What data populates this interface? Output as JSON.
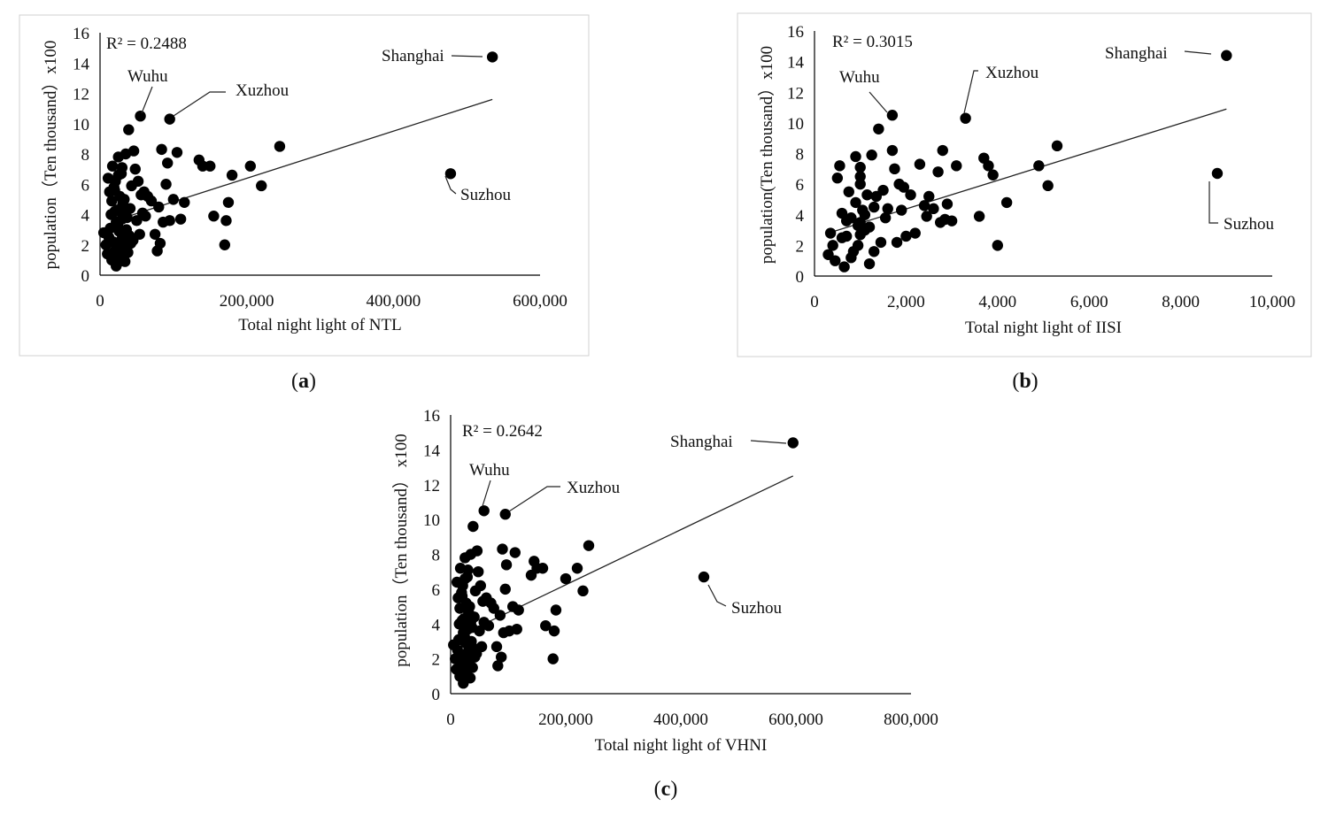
{
  "chart_data": [
    {
      "type": "scatter",
      "panel_label": "a",
      "xlabel": "Total night light  of  NTL",
      "ylabel": "population（Ten thousand）x100",
      "xlim": [
        0,
        600000
      ],
      "ylim": [
        0,
        16
      ],
      "xticks": [
        "0",
        "200,000",
        "400,000",
        "600,000"
      ],
      "yticks": [
        "0",
        "2",
        "4",
        "6",
        "8",
        "10",
        "12",
        "14",
        "16"
      ],
      "r2_label": "R² = 0.2488",
      "trendline": [
        [
          20000,
          3.6
        ],
        [
          535000,
          11.6
        ]
      ],
      "labeled_points": [
        {
          "name": "Shanghai",
          "x": 535000,
          "y": 14.4
        },
        {
          "name": "Suzhou",
          "x": 478000,
          "y": 6.7
        },
        {
          "name": "Wuhu",
          "x": 55000,
          "y": 10.5
        },
        {
          "name": "Xuzhou",
          "x": 95000,
          "y": 10.3
        }
      ],
      "points": [
        [
          5000,
          2.8
        ],
        [
          8000,
          2.0
        ],
        [
          10000,
          1.4
        ],
        [
          12000,
          2.5
        ],
        [
          14000,
          3.1
        ],
        [
          16000,
          1.0
        ],
        [
          18000,
          2.2
        ],
        [
          20000,
          1.6
        ],
        [
          22000,
          3.5
        ],
        [
          24000,
          0.8
        ],
        [
          26000,
          2.9
        ],
        [
          28000,
          1.2
        ],
        [
          30000,
          2.4
        ],
        [
          32000,
          1.8
        ],
        [
          34000,
          0.9
        ],
        [
          36000,
          3.0
        ],
        [
          38000,
          1.5
        ],
        [
          40000,
          2.6
        ],
        [
          42000,
          2.1
        ],
        [
          45000,
          2.3
        ],
        [
          11000,
          6.4
        ],
        [
          13000,
          5.5
        ],
        [
          15000,
          4.0
        ],
        [
          17000,
          7.2
        ],
        [
          19000,
          5.8
        ],
        [
          21000,
          6.2
        ],
        [
          23000,
          4.3
        ],
        [
          25000,
          7.8
        ],
        [
          27000,
          5.2
        ],
        [
          29000,
          6.7
        ],
        [
          31000,
          4.7
        ],
        [
          33000,
          5.0
        ],
        [
          35000,
          4.1
        ],
        [
          37000,
          3.8
        ],
        [
          39000,
          9.6
        ],
        [
          41000,
          4.4
        ],
        [
          43000,
          5.9
        ],
        [
          46000,
          8.2
        ],
        [
          48000,
          7.0
        ],
        [
          50000,
          3.6
        ],
        [
          52000,
          6.2
        ],
        [
          54000,
          2.7
        ],
        [
          56000,
          5.3
        ],
        [
          58000,
          4.1
        ],
        [
          60000,
          5.5
        ],
        [
          62000,
          3.9
        ],
        [
          65000,
          5.2
        ],
        [
          70000,
          4.9
        ],
        [
          75000,
          2.7
        ],
        [
          78000,
          1.6
        ],
        [
          80000,
          4.5
        ],
        [
          82000,
          2.1
        ],
        [
          84000,
          8.3
        ],
        [
          86000,
          3.5
        ],
        [
          90000,
          6.0
        ],
        [
          92000,
          7.4
        ],
        [
          95000,
          3.6
        ],
        [
          100000,
          5.0
        ],
        [
          105000,
          8.1
        ],
        [
          110000,
          3.7
        ],
        [
          115000,
          4.8
        ],
        [
          135000,
          7.6
        ],
        [
          140000,
          7.2
        ],
        [
          150000,
          7.2
        ],
        [
          155000,
          3.9
        ],
        [
          170000,
          2.0
        ],
        [
          172000,
          3.6
        ],
        [
          175000,
          4.8
        ],
        [
          180000,
          6.6
        ],
        [
          205000,
          7.2
        ],
        [
          220000,
          5.9
        ],
        [
          245000,
          8.5
        ],
        [
          20000,
          4.2
        ],
        [
          24000,
          3.3
        ],
        [
          28000,
          2.0
        ],
        [
          18000,
          1.2
        ],
        [
          22000,
          0.6
        ],
        [
          26000,
          1.9
        ],
        [
          30000,
          3.7
        ],
        [
          16000,
          4.9
        ],
        [
          20000,
          5.6
        ],
        [
          25000,
          6.6
        ],
        [
          30000,
          7.1
        ],
        [
          35000,
          8.0
        ]
      ]
    },
    {
      "type": "scatter",
      "panel_label": "b",
      "xlabel": "Total night light of IISI",
      "ylabel": "population(Ten thousand）x100",
      "xlim": [
        0,
        10000
      ],
      "ylim": [
        0,
        16
      ],
      "xticks": [
        "0",
        "2,000",
        "4,000",
        "6,000",
        "8,000",
        "10,000"
      ],
      "yticks": [
        "0",
        "2",
        "4",
        "6",
        "8",
        "10",
        "12",
        "14",
        "16"
      ],
      "r2_label": "R² = 0.3015",
      "trendline": [
        [
          300,
          2.8
        ],
        [
          9000,
          10.9
        ]
      ],
      "labeled_points": [
        {
          "name": "Shanghai",
          "x": 9000,
          "y": 14.4
        },
        {
          "name": "Suzhou",
          "x": 8800,
          "y": 6.7
        },
        {
          "name": "Wuhu",
          "x": 1700,
          "y": 10.5
        },
        {
          "name": "Xuzhou",
          "x": 3300,
          "y": 10.3
        }
      ],
      "points": [
        [
          300,
          1.4
        ],
        [
          350,
          2.8
        ],
        [
          400,
          2.0
        ],
        [
          450,
          1.0
        ],
        [
          500,
          6.4
        ],
        [
          550,
          7.2
        ],
        [
          600,
          4.1
        ],
        [
          650,
          0.6
        ],
        [
          700,
          2.6
        ],
        [
          750,
          5.5
        ],
        [
          800,
          3.8
        ],
        [
          850,
          1.6
        ],
        [
          900,
          7.8
        ],
        [
          950,
          3.3
        ],
        [
          1000,
          6.5
        ],
        [
          1000,
          2.7
        ],
        [
          1050,
          4.3
        ],
        [
          1100,
          3.0
        ],
        [
          1150,
          5.3
        ],
        [
          1200,
          0.8
        ],
        [
          1250,
          7.9
        ],
        [
          1300,
          4.5
        ],
        [
          1350,
          5.2
        ],
        [
          1400,
          9.6
        ],
        [
          1450,
          2.2
        ],
        [
          1500,
          5.6
        ],
        [
          1550,
          3.8
        ],
        [
          1600,
          4.4
        ],
        [
          1700,
          8.2
        ],
        [
          1750,
          7.0
        ],
        [
          1800,
          2.2
        ],
        [
          1850,
          6.0
        ],
        [
          1900,
          4.3
        ],
        [
          1950,
          5.8
        ],
        [
          2000,
          2.6
        ],
        [
          2100,
          5.3
        ],
        [
          2200,
          2.8
        ],
        [
          2300,
          7.3
        ],
        [
          2400,
          4.6
        ],
        [
          2450,
          3.9
        ],
        [
          2500,
          5.2
        ],
        [
          2600,
          4.4
        ],
        [
          2700,
          6.8
        ],
        [
          2750,
          3.5
        ],
        [
          2800,
          8.2
        ],
        [
          2850,
          3.7
        ],
        [
          2900,
          4.7
        ],
        [
          3000,
          3.6
        ],
        [
          3100,
          7.2
        ],
        [
          3600,
          3.9
        ],
        [
          3700,
          7.7
        ],
        [
          3800,
          7.2
        ],
        [
          3900,
          6.6
        ],
        [
          4000,
          2.0
        ],
        [
          4200,
          4.8
        ],
        [
          4900,
          7.2
        ],
        [
          5100,
          5.9
        ],
        [
          5300,
          8.5
        ],
        [
          1000,
          3.5
        ],
        [
          1100,
          4.0
        ],
        [
          900,
          4.8
        ],
        [
          950,
          2.0
        ],
        [
          1200,
          3.2
        ],
        [
          1000,
          7.1
        ],
        [
          1000,
          6.0
        ],
        [
          600,
          2.5
        ],
        [
          700,
          3.6
        ],
        [
          800,
          1.2
        ],
        [
          1300,
          1.6
        ]
      ]
    },
    {
      "type": "scatter",
      "panel_label": "c",
      "xlabel": "Total night light  of VHNI",
      "ylabel": "population（Ten thousand）  x100",
      "xlim": [
        0,
        800000
      ],
      "ylim": [
        0,
        16
      ],
      "xticks": [
        "0",
        "200,000",
        "400,000",
        "600,000",
        "800,000"
      ],
      "yticks": [
        "0",
        "2",
        "4",
        "6",
        "8",
        "10",
        "12",
        "14",
        "16"
      ],
      "r2_label": "R² = 0.2642",
      "trendline": [
        [
          20000,
          3.4
        ],
        [
          595000,
          12.5
        ]
      ],
      "labeled_points": [
        {
          "name": "Shanghai",
          "x": 595000,
          "y": 14.4
        },
        {
          "name": "Suzhou",
          "x": 440000,
          "y": 6.7
        },
        {
          "name": "Wuhu",
          "x": 58000,
          "y": 10.5
        },
        {
          "name": "Xuzhou",
          "x": 95000,
          "y": 10.3
        }
      ],
      "points": [
        [
          5000,
          2.8
        ],
        [
          8000,
          2.0
        ],
        [
          10000,
          1.4
        ],
        [
          12000,
          2.5
        ],
        [
          14000,
          3.1
        ],
        [
          16000,
          1.0
        ],
        [
          18000,
          2.2
        ],
        [
          20000,
          1.6
        ],
        [
          22000,
          3.5
        ],
        [
          24000,
          0.8
        ],
        [
          26000,
          2.9
        ],
        [
          28000,
          1.2
        ],
        [
          30000,
          2.4
        ],
        [
          32000,
          1.8
        ],
        [
          34000,
          0.9
        ],
        [
          36000,
          3.0
        ],
        [
          38000,
          1.5
        ],
        [
          40000,
          2.6
        ],
        [
          42000,
          2.1
        ],
        [
          45000,
          2.3
        ],
        [
          11000,
          6.4
        ],
        [
          13000,
          5.5
        ],
        [
          15000,
          4.0
        ],
        [
          17000,
          7.2
        ],
        [
          19000,
          5.8
        ],
        [
          21000,
          6.2
        ],
        [
          23000,
          4.3
        ],
        [
          25000,
          7.8
        ],
        [
          27000,
          5.2
        ],
        [
          29000,
          6.7
        ],
        [
          31000,
          4.7
        ],
        [
          33000,
          5.0
        ],
        [
          35000,
          4.1
        ],
        [
          37000,
          3.8
        ],
        [
          39000,
          9.6
        ],
        [
          41000,
          4.4
        ],
        [
          43000,
          5.9
        ],
        [
          46000,
          8.2
        ],
        [
          48000,
          7.0
        ],
        [
          50000,
          3.6
        ],
        [
          52000,
          6.2
        ],
        [
          54000,
          2.7
        ],
        [
          56000,
          5.3
        ],
        [
          58000,
          4.1
        ],
        [
          62000,
          5.5
        ],
        [
          66000,
          3.9
        ],
        [
          70000,
          5.2
        ],
        [
          75000,
          4.9
        ],
        [
          80000,
          2.7
        ],
        [
          82000,
          1.6
        ],
        [
          86000,
          4.5
        ],
        [
          88000,
          2.1
        ],
        [
          90000,
          8.3
        ],
        [
          92000,
          3.5
        ],
        [
          95000,
          6.0
        ],
        [
          97000,
          7.4
        ],
        [
          102000,
          3.6
        ],
        [
          108000,
          5.0
        ],
        [
          112000,
          8.1
        ],
        [
          115000,
          3.7
        ],
        [
          118000,
          4.8
        ],
        [
          140000,
          6.8
        ],
        [
          145000,
          7.6
        ],
        [
          150000,
          7.2
        ],
        [
          160000,
          7.2
        ],
        [
          165000,
          3.9
        ],
        [
          178000,
          2.0
        ],
        [
          180000,
          3.6
        ],
        [
          183000,
          4.8
        ],
        [
          200000,
          6.6
        ],
        [
          220000,
          7.2
        ],
        [
          230000,
          5.9
        ],
        [
          240000,
          8.5
        ],
        [
          20000,
          4.2
        ],
        [
          24000,
          3.3
        ],
        [
          28000,
          2.0
        ],
        [
          18000,
          1.2
        ],
        [
          22000,
          0.6
        ],
        [
          26000,
          1.9
        ],
        [
          30000,
          3.7
        ],
        [
          16000,
          4.9
        ],
        [
          20000,
          5.6
        ],
        [
          25000,
          6.6
        ],
        [
          30000,
          7.1
        ],
        [
          35000,
          8.0
        ]
      ]
    }
  ]
}
